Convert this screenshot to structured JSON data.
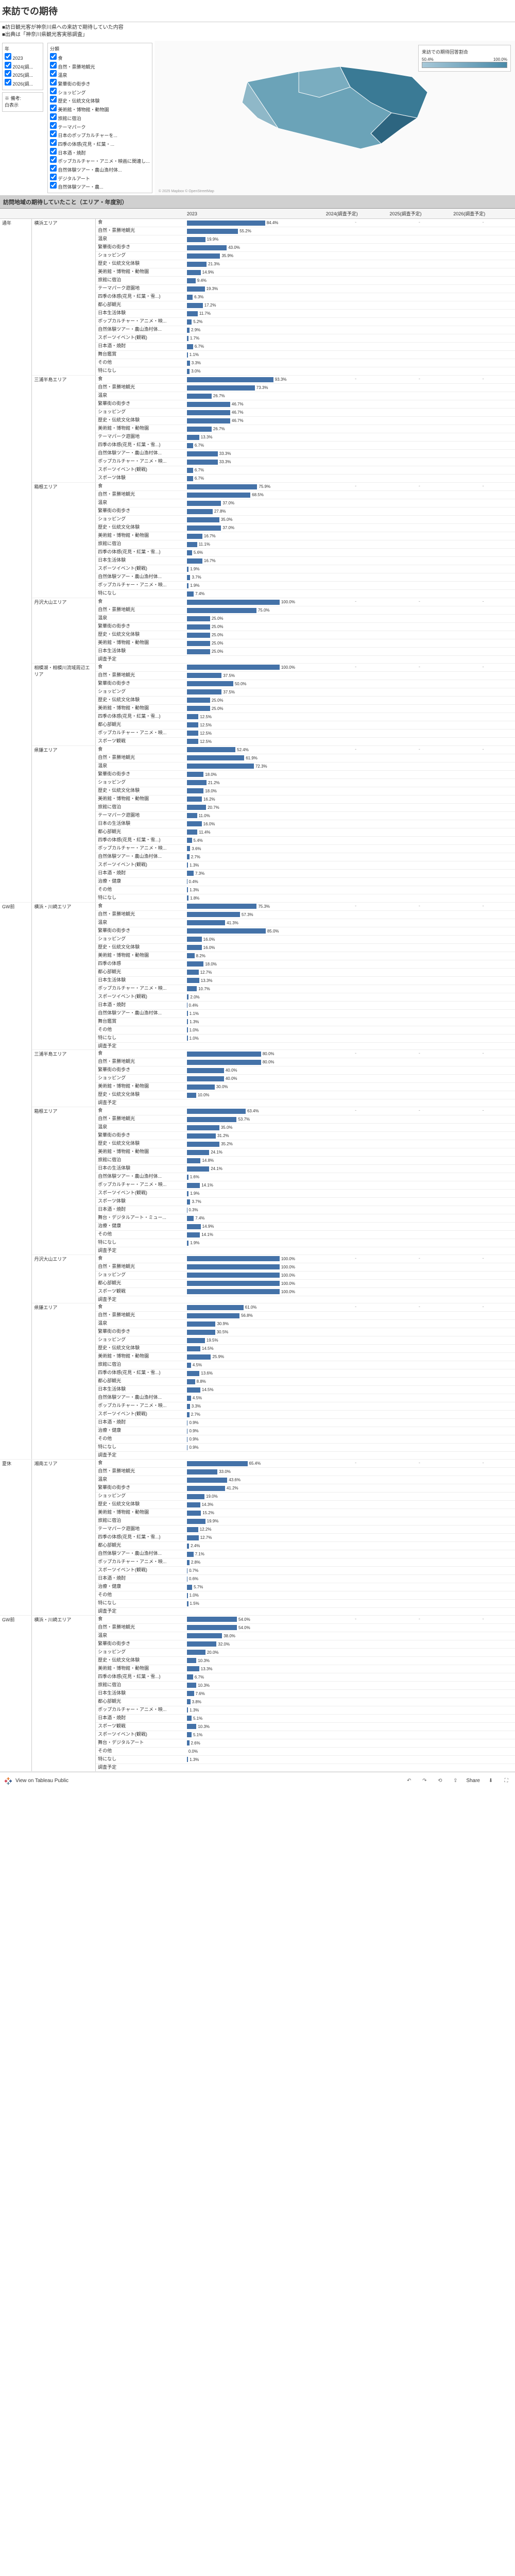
{
  "title": "来訪での期待",
  "subtitle_lines": [
    "■訪日観光客が神奈川県への来訪で期待していた内容",
    "■出典は「神奈川県観光客実態調査」"
  ],
  "filters": {
    "year": {
      "title": "年",
      "options": [
        "2023",
        "2024(調...",
        "2025(調...",
        "2026(調..."
      ]
    },
    "category": {
      "title": "分類",
      "options": [
        "食",
        "自然・景勝地観光",
        "温泉",
        "繁華街の街歩き",
        "ショッピング",
        "歴史・伝統文化体験",
        "美術館・博物館・動物園",
        "旅館に宿泊",
        "テーマパーク",
        "日本のポップカルチャーを...",
        "四季の体感(花見・紅葉・...",
        "日本酒・焼酎",
        "ポップカルチャー・アニメ・映画に関連し...",
        "自然体験ツアー・農山漁村体...",
        "デジタルアート",
        "自然体験ツアー・農..."
      ]
    }
  },
  "legend": {
    "title": "来訪での期待回答割合",
    "min": "50.4%",
    "max": "100.0%"
  },
  "attribution": "© 2025 Mapbox © OpenStreetMap",
  "section_title": "訪問地域の期待していたこと（エリア・年度別）",
  "columns": [
    "",
    "",
    "",
    "2023",
    "2024(調査予定)",
    "2025(調査予定)",
    "2026(調査予定)"
  ],
  "groups": [
    {
      "period": "通年",
      "areas": [
        {
          "name": "横浜エリア",
          "rows": [
            {
              "cat": "食",
              "val": 84.4
            },
            {
              "cat": "自然・景勝地観光",
              "val": 55.2
            },
            {
              "cat": "温泉",
              "val": 19.9
            },
            {
              "cat": "繁華街の街歩き",
              "val": 43.0
            },
            {
              "cat": "ショッピング",
              "val": 35.9
            },
            {
              "cat": "歴史・伝統文化体験",
              "val": 21.3
            },
            {
              "cat": "美術館・博物館・動物園",
              "val": 14.9
            },
            {
              "cat": "旅館に宿泊",
              "val": 9.4
            },
            {
              "cat": "テーマパーク遊園地",
              "val": 19.3
            },
            {
              "cat": "四季の体感(花見・紅葉・雪...)",
              "val": 6.3
            },
            {
              "cat": "都心部観光",
              "val": 17.2
            },
            {
              "cat": "日本生活体験",
              "val": 11.7
            },
            {
              "cat": "ポップカルチャー・アニメ・映...",
              "val": 5.2
            },
            {
              "cat": "自然体験ツアー・農山漁村体...",
              "val": 2.9
            },
            {
              "cat": "スポーツイベント(観戦)",
              "val": 1.7
            },
            {
              "cat": "日本酒・焼酎",
              "val": 6.7
            },
            {
              "cat": "舞台鑑賞",
              "val": 1.1
            },
            {
              "cat": "その他",
              "val": 3.3
            },
            {
              "cat": "特になし",
              "val": 3.0
            }
          ]
        },
        {
          "name": "三浦半島エリア",
          "rows": [
            {
              "cat": "食",
              "val": 93.3
            },
            {
              "cat": "自然・景勝地観光",
              "val": 73.3
            },
            {
              "cat": "温泉",
              "val": 26.7
            },
            {
              "cat": "繁華街の街歩き",
              "val": 46.7
            },
            {
              "cat": "ショッピング",
              "val": 46.7
            },
            {
              "cat": "歴史・伝統文化体験",
              "val": 46.7
            },
            {
              "cat": "美術館・博物館・動物園",
              "val": 26.7
            },
            {
              "cat": "テーマパーク遊園地",
              "val": 13.3
            },
            {
              "cat": "四季の体感(花見・紅葉・雪...)",
              "val": 6.7
            },
            {
              "cat": "自然体験ツアー・農山漁村体...",
              "val": 33.3
            },
            {
              "cat": "ポップカルチャー・アニメ・映...",
              "val": 33.3
            },
            {
              "cat": "スポーツイベント(観戦)",
              "val": 6.7
            },
            {
              "cat": "スポーツ体験",
              "val": 6.7
            }
          ]
        },
        {
          "name": "箱根エリア",
          "rows": [
            {
              "cat": "食",
              "val": 75.9
            },
            {
              "cat": "自然・景勝地観光",
              "val": 68.5
            },
            {
              "cat": "温泉",
              "val": 37.0
            },
            {
              "cat": "繁華街の街歩き",
              "val": 27.8
            },
            {
              "cat": "ショッピング",
              "val": 35.0
            },
            {
              "cat": "歴史・伝統文化体験",
              "val": 37.0
            },
            {
              "cat": "美術館・博物館・動物園",
              "val": 16.7
            },
            {
              "cat": "旅館に宿泊",
              "val": 11.1
            },
            {
              "cat": "四季の体感(花見・紅葉・雪...)",
              "val": 5.6
            },
            {
              "cat": "日本生活体験",
              "val": 16.7
            },
            {
              "cat": "スポーツイベント(観戦)",
              "val": 1.9
            },
            {
              "cat": "自然体験ツアー・農山漁村体...",
              "val": 3.7
            },
            {
              "cat": "ポップカルチャー・アニメ・映...",
              "val": 1.9
            },
            {
              "cat": "特になし",
              "val": 7.4
            }
          ]
        },
        {
          "name": "丹沢大山エリア",
          "rows": [
            {
              "cat": "食",
              "val": 100.0
            },
            {
              "cat": "自然・景勝地観光",
              "val": 75.0
            },
            {
              "cat": "温泉",
              "val": 25.0
            },
            {
              "cat": "繁華街の街歩き",
              "val": 25.0
            },
            {
              "cat": "歴史・伝統文化体験",
              "val": 25.0
            },
            {
              "cat": "美術館・博物館・動物園",
              "val": 25.0
            },
            {
              "cat": "日本生活体験",
              "val": 25.0
            },
            {
              "cat": "調査予定",
              "val": null
            }
          ]
        },
        {
          "name": "相模湖・相模川流域周辺エリア",
          "rows": [
            {
              "cat": "食",
              "val": 100.0
            },
            {
              "cat": "自然・景勝地観光",
              "val": 37.5
            },
            {
              "cat": "繁華街の街歩き",
              "val": 50.0
            },
            {
              "cat": "ショッピング",
              "val": 37.5
            },
            {
              "cat": "歴史・伝統文化体験",
              "val": 25.0
            },
            {
              "cat": "美術館・博物館・動物園",
              "val": 25.0
            },
            {
              "cat": "四季の体感(花見・紅葉・雪...)",
              "val": 12.5
            },
            {
              "cat": "都心部観光",
              "val": 12.5
            },
            {
              "cat": "ポップカルチャー・アニメ・映...",
              "val": 12.5
            },
            {
              "cat": "スポーツ観戦",
              "val": 12.5
            }
          ]
        },
        {
          "name": "県鎌エリア",
          "rows": [
            {
              "cat": "食",
              "val": 52.4
            },
            {
              "cat": "自然・景勝地観光",
              "val": 61.9
            },
            {
              "cat": "温泉",
              "val": 72.3
            },
            {
              "cat": "繁華街の街歩き",
              "val": 18.0
            },
            {
              "cat": "ショッピング",
              "val": 21.2
            },
            {
              "cat": "歴史・伝統文化体験",
              "val": 18.0
            },
            {
              "cat": "美術館・博物館・動物園",
              "val": 16.2
            },
            {
              "cat": "旅館に宿泊",
              "val": 20.7
            },
            {
              "cat": "テーマパーク遊園地",
              "val": 11.0
            },
            {
              "cat": "日本の生活体験",
              "val": 16.0
            },
            {
              "cat": "都心部観光",
              "val": 11.4
            },
            {
              "cat": "四季の体感(花見・紅葉・雪...)",
              "val": 5.4
            },
            {
              "cat": "ポップカルチャー・アニメ・映...",
              "val": 3.6
            },
            {
              "cat": "自然体験ツアー・農山漁村体...",
              "val": 2.7
            },
            {
              "cat": "スポーツイベント(観戦)",
              "val": 1.3
            },
            {
              "cat": "日本酒・焼酎",
              "val": 7.3
            },
            {
              "cat": "治療・健康",
              "val": 0.4
            },
            {
              "cat": "その他",
              "val": 1.3
            },
            {
              "cat": "特になし",
              "val": 1.8
            }
          ]
        }
      ]
    },
    {
      "period": "GW前",
      "areas": [
        {
          "name": "横浜・川崎エリア",
          "rows": [
            {
              "cat": "食",
              "val": 75.3
            },
            {
              "cat": "自然・景勝地観光",
              "val": 57.3
            },
            {
              "cat": "温泉",
              "val": 41.3
            },
            {
              "cat": "繁華街の街歩き",
              "val": 85.0
            },
            {
              "cat": "ショッピング",
              "val": 16.0
            },
            {
              "cat": "歴史・伝統文化体験",
              "val": 16.0
            },
            {
              "cat": "美術館・博物館・動物園",
              "val": 8.2
            },
            {
              "cat": "四季の体感",
              "val": 18.0
            },
            {
              "cat": "都心部観光",
              "val": 12.7
            },
            {
              "cat": "日本生活体験",
              "val": 13.3
            },
            {
              "cat": "ポップカルチャー・アニメ・映...",
              "val": 10.7
            },
            {
              "cat": "スポーツイベント(観戦)",
              "val": 2.0
            },
            {
              "cat": "日本酒・焼酎",
              "val": 0.4
            },
            {
              "cat": "自然体験ツアー・農山漁村体...",
              "val": 1.1
            },
            {
              "cat": "舞台鑑賞",
              "val": 1.3
            },
            {
              "cat": "その他",
              "val": 1.0
            },
            {
              "cat": "特になし",
              "val": 1.0
            },
            {
              "cat": "調査予定",
              "val": null
            }
          ]
        },
        {
          "name": "三浦半島エリア",
          "rows": [
            {
              "cat": "食",
              "val": 80.0
            },
            {
              "cat": "自然・景勝地観光",
              "val": 80.0
            },
            {
              "cat": "繁華街の街歩き",
              "val": 40.0
            },
            {
              "cat": "ショッピング",
              "val": 40.0
            },
            {
              "cat": "美術館・博物館・動物園",
              "val": 30.0
            },
            {
              "cat": "歴史・伝統文化体験",
              "val": 10.0
            },
            {
              "cat": "調査予定",
              "val": null
            }
          ]
        },
        {
          "name": "箱根エリア",
          "rows": [
            {
              "cat": "食",
              "val": 63.4
            },
            {
              "cat": "自然・景勝地観光",
              "val": 53.7
            },
            {
              "cat": "温泉",
              "val": 35.0
            },
            {
              "cat": "繁華街の街歩き",
              "val": 31.2
            },
            {
              "cat": "歴史・伝統文化体験",
              "val": 35.2
            },
            {
              "cat": "美術館・博物館・動物園",
              "val": 24.1
            },
            {
              "cat": "旅館に宿泊",
              "val": 14.8
            },
            {
              "cat": "日本の生活体験",
              "val": 24.1
            },
            {
              "cat": "自然体験ツアー・農山漁村体...",
              "val": 1.6
            },
            {
              "cat": "ポップカルチャー・アニメ・映...",
              "val": 14.1
            },
            {
              "cat": "スポーツイベント(観戦)",
              "val": 1.9
            },
            {
              "cat": "スポーツ体験",
              "val": 3.7
            },
            {
              "cat": "日本酒・焼酎",
              "val": 0.3
            },
            {
              "cat": "舞台・デジタルアート・ミュー...",
              "val": 7.4
            },
            {
              "cat": "治療・健康",
              "val": 14.9
            },
            {
              "cat": "その他",
              "val": 14.1
            },
            {
              "cat": "特になし",
              "val": 1.9
            },
            {
              "cat": "調査予定",
              "val": null
            }
          ]
        },
        {
          "name": "丹沢大山エリア",
          "rows": [
            {
              "cat": "食",
              "val": 100.0
            },
            {
              "cat": "自然・景勝地観光",
              "val": 100.0
            },
            {
              "cat": "ショッピング",
              "val": 100.0
            },
            {
              "cat": "都心部観光",
              "val": 100.0
            },
            {
              "cat": "スポーツ観戦",
              "val": 100.0
            },
            {
              "cat": "調査予定",
              "val": null
            }
          ]
        },
        {
          "name": "県鎌エリア",
          "rows": [
            {
              "cat": "食",
              "val": 61.0
            },
            {
              "cat": "自然・景勝地観光",
              "val": 56.8
            },
            {
              "cat": "温泉",
              "val": 30.9
            },
            {
              "cat": "繁華街の街歩き",
              "val": 30.5
            },
            {
              "cat": "ショッピング",
              "val": 19.5
            },
            {
              "cat": "歴史・伝統文化体験",
              "val": 14.5
            },
            {
              "cat": "美術館・博物館・動物園",
              "val": 25.9
            },
            {
              "cat": "旅館に宿泊",
              "val": 4.5
            },
            {
              "cat": "四季の体感(花見・紅葉・雪...)",
              "val": 13.6
            },
            {
              "cat": "都心部観光",
              "val": 8.8
            },
            {
              "cat": "日本生活体験",
              "val": 14.5
            },
            {
              "cat": "自然体験ツアー・農山漁村体...",
              "val": 4.5
            },
            {
              "cat": "ポップカルチャー・アニメ・映...",
              "val": 3.3
            },
            {
              "cat": "スポーツイベント(観戦)",
              "val": 2.7
            },
            {
              "cat": "日本酒・焼酎",
              "val": 0.9
            },
            {
              "cat": "治療・健康",
              "val": 0.9
            },
            {
              "cat": "その他",
              "val": 0.9
            },
            {
              "cat": "特になし",
              "val": 0.9
            },
            {
              "cat": "調査予定",
              "val": null
            }
          ]
        }
      ]
    },
    {
      "period": "夏休",
      "areas": [
        {
          "name": "湘南エリア",
          "rows": [
            {
              "cat": "食",
              "val": 65.4
            },
            {
              "cat": "自然・景勝地観光",
              "val": 33.0
            },
            {
              "cat": "温泉",
              "val": 43.6
            },
            {
              "cat": "繁華街の街歩き",
              "val": 41.2
            },
            {
              "cat": "ショッピング",
              "val": 19.0
            },
            {
              "cat": "歴史・伝統文化体験",
              "val": 14.3
            },
            {
              "cat": "美術館・博物館・動物園",
              "val": 15.2
            },
            {
              "cat": "旅館に宿泊",
              "val": 19.9
            },
            {
              "cat": "テーマパーク遊園地",
              "val": 12.2
            },
            {
              "cat": "四季の体感(花見・紅葉・雪...)",
              "val": 12.7
            },
            {
              "cat": "都心部観光",
              "val": 2.4
            },
            {
              "cat": "自然体験ツアー・農山漁村体...",
              "val": 7.1
            },
            {
              "cat": "ポップカルチャー・アニメ・映...",
              "val": 2.8
            },
            {
              "cat": "スポーツイベント(観戦)",
              "val": 0.7
            },
            {
              "cat": "日本酒・焼酎",
              "val": 0.6
            },
            {
              "cat": "治療・健康",
              "val": 5.7
            },
            {
              "cat": "その他",
              "val": 1.0
            },
            {
              "cat": "特になし",
              "val": 1.5
            },
            {
              "cat": "調査予定",
              "val": null
            }
          ]
        }
      ]
    },
    {
      "period": "GW前",
      "areas": [
        {
          "name": "横浜・川崎エリア",
          "rows": [
            {
              "cat": "食",
              "val": 54.0
            },
            {
              "cat": "自然・景勝地観光",
              "val": 54.0
            },
            {
              "cat": "温泉",
              "val": 38.0
            },
            {
              "cat": "繁華街の街歩き",
              "val": 32.0
            },
            {
              "cat": "ショッピング",
              "val": 20.0
            },
            {
              "cat": "歴史・伝統文化体験",
              "val": 10.3
            },
            {
              "cat": "美術館・博物館・動物園",
              "val": 13.3
            },
            {
              "cat": "四季の体感(花見・紅葉・雪...)",
              "val": 6.7
            },
            {
              "cat": "旅館に宿泊",
              "val": 10.3
            },
            {
              "cat": "日本生活体験",
              "val": 7.6
            },
            {
              "cat": "都心部観光",
              "val": 3.8
            },
            {
              "cat": "ポップカルチャー・アニメ・映...",
              "val": 1.3
            },
            {
              "cat": "日本酒・焼酎",
              "val": 5.1
            },
            {
              "cat": "スポーツ観戦",
              "val": 10.3
            },
            {
              "cat": "スポーツイベント(観戦)",
              "val": 5.1
            },
            {
              "cat": "舞台・デジタルアート",
              "val": 2.6
            },
            {
              "cat": "その他",
              "val": 0.0
            },
            {
              "cat": "特になし",
              "val": 1.3
            },
            {
              "cat": "調査予定",
              "val": null
            }
          ]
        }
      ]
    }
  ],
  "footer": {
    "view_on": "View on Tableau Public",
    "share": "Share"
  }
}
